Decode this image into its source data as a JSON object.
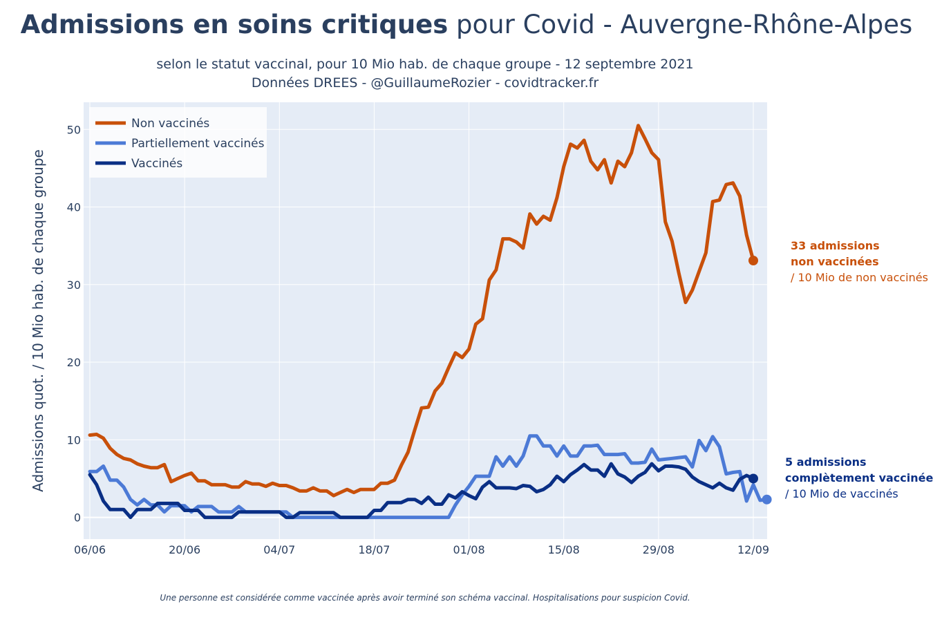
{
  "title": {
    "bold": "Admissions en soins critiques",
    "rest": " pour Covid - Auvergne-Rhône-Alpes"
  },
  "subtitle_line1": "selon le statut vaccinal, pour 10 Mio hab. de chaque groupe - 12 septembre 2021",
  "subtitle_line2": "Données DREES - @GuillaumeRozier - covidtracker.fr",
  "footnote": "Une personne est considérée comme vaccinée après avoir terminé son schéma vaccinal. Hospitalisations pour suspicion Covid.",
  "annotations": {
    "non_vaccines": {
      "line1": "33 admissions",
      "line2": "non vaccinées",
      "line3": "/ 10 Mio de non vaccinés",
      "color": "#c8500a"
    },
    "vaccines": {
      "line1": "5 admissions",
      "line2": "complètement vaccinée",
      "line3": "/ 10 Mio de vaccinés",
      "color": "#0a2f85"
    }
  },
  "chart_data": {
    "type": "line",
    "title": "Admissions en soins critiques pour Covid - Auvergne-Rhône-Alpes",
    "ylabel": "Admissions quot. / 10 Mio hab. de chaque groupe",
    "xlabel": "",
    "x_start_date": "2021-06-06",
    "x_end_date": "2021-09-12",
    "x_ticks": [
      "06/06",
      "20/06",
      "04/07",
      "18/07",
      "01/08",
      "15/08",
      "29/08",
      "12/09"
    ],
    "y_ticks": [
      0,
      10,
      20,
      30,
      40,
      50
    ],
    "ylim": [
      -2.8,
      53.5
    ],
    "grid": true,
    "legend_position": "top-left",
    "series": [
      {
        "name": "Non vaccinés",
        "color": "#c8500a",
        "values": [
          10.6,
          10.7,
          10.2,
          8.9,
          8.1,
          7.6,
          7.4,
          6.9,
          6.6,
          6.4,
          6.4,
          6.8,
          4.6,
          5.0,
          5.4,
          5.7,
          4.7,
          4.7,
          4.2,
          4.2,
          4.2,
          3.9,
          3.9,
          4.6,
          4.3,
          4.3,
          4.0,
          4.4,
          4.1,
          4.1,
          3.8,
          3.4,
          3.4,
          3.8,
          3.4,
          3.4,
          2.8,
          3.2,
          3.6,
          3.2,
          3.6,
          3.6,
          3.6,
          4.4,
          4.4,
          4.8,
          6.7,
          8.4,
          11.3,
          14.1,
          14.2,
          16.3,
          17.3,
          19.3,
          21.2,
          20.6,
          21.7,
          24.9,
          25.6,
          30.6,
          31.9,
          35.9,
          35.9,
          35.5,
          34.7,
          39.1,
          37.8,
          38.8,
          38.3,
          41.2,
          45.2,
          48.1,
          47.6,
          48.6,
          45.9,
          44.8,
          46.1,
          43.1,
          45.9,
          45.2,
          47.0,
          50.5,
          48.8,
          47.0,
          46.1,
          38.1,
          35.6,
          31.5,
          27.7,
          29.3,
          31.7,
          34.1,
          40.7,
          40.9,
          42.9,
          43.1,
          41.4,
          36.4,
          33.1
        ]
      },
      {
        "name": "Partiellement vaccinés",
        "color": "#4c7ad6",
        "values": [
          5.9,
          5.9,
          6.6,
          4.8,
          4.8,
          3.9,
          2.3,
          1.6,
          2.3,
          1.6,
          1.6,
          0.7,
          1.5,
          1.5,
          1.5,
          0.7,
          1.4,
          1.4,
          1.4,
          0.7,
          0.7,
          0.7,
          1.4,
          0.7,
          0.7,
          0.7,
          0.7,
          0.7,
          0.7,
          0.7,
          0.0,
          0.0,
          0.0,
          0.0,
          0.0,
          0.0,
          0.0,
          0.0,
          0.0,
          0.0,
          0.0,
          0.0,
          0.0,
          0.0,
          0.0,
          0.0,
          0.0,
          0.0,
          0.0,
          0.0,
          0.0,
          0.0,
          0.0,
          0.0,
          1.6,
          2.9,
          4.0,
          5.3,
          5.3,
          5.3,
          7.8,
          6.6,
          7.8,
          6.6,
          7.9,
          10.5,
          10.5,
          9.2,
          9.2,
          7.9,
          9.2,
          7.9,
          7.9,
          9.2,
          9.2,
          9.3,
          8.1,
          8.1,
          8.1,
          8.2,
          7.0,
          7.0,
          7.1,
          8.8,
          7.4,
          7.5,
          7.6,
          7.7,
          7.8,
          6.5,
          9.9,
          8.6,
          10.4,
          9.1,
          5.6,
          5.8,
          5.9,
          2.1,
          4.2,
          2.2,
          2.3
        ]
      },
      {
        "name": "Vaccinés",
        "color": "#0a2f85",
        "values": [
          5.5,
          4.2,
          2.1,
          1.0,
          1.0,
          1.0,
          0.0,
          1.0,
          1.0,
          1.0,
          1.8,
          1.8,
          1.8,
          1.8,
          0.9,
          0.9,
          0.9,
          0.0,
          0.0,
          0.0,
          0.0,
          0.0,
          0.7,
          0.7,
          0.7,
          0.7,
          0.7,
          0.7,
          0.7,
          0.0,
          0.0,
          0.6,
          0.6,
          0.6,
          0.6,
          0.6,
          0.6,
          0.0,
          0.0,
          0.0,
          0.0,
          0.0,
          0.9,
          0.9,
          1.9,
          1.9,
          1.9,
          2.3,
          2.3,
          1.8,
          2.6,
          1.7,
          1.7,
          2.9,
          2.5,
          3.3,
          2.8,
          2.4,
          3.9,
          4.6,
          3.8,
          3.8,
          3.8,
          3.7,
          4.1,
          4.0,
          3.3,
          3.6,
          4.2,
          5.3,
          4.6,
          5.5,
          6.1,
          6.8,
          6.1,
          6.1,
          5.3,
          6.9,
          5.6,
          5.2,
          4.5,
          5.3,
          5.8,
          6.9,
          6.0,
          6.6,
          6.6,
          6.5,
          6.2,
          5.2,
          4.6,
          4.2,
          3.8,
          4.4,
          3.8,
          3.5,
          4.9,
          5.4,
          5.0
        ]
      }
    ]
  }
}
